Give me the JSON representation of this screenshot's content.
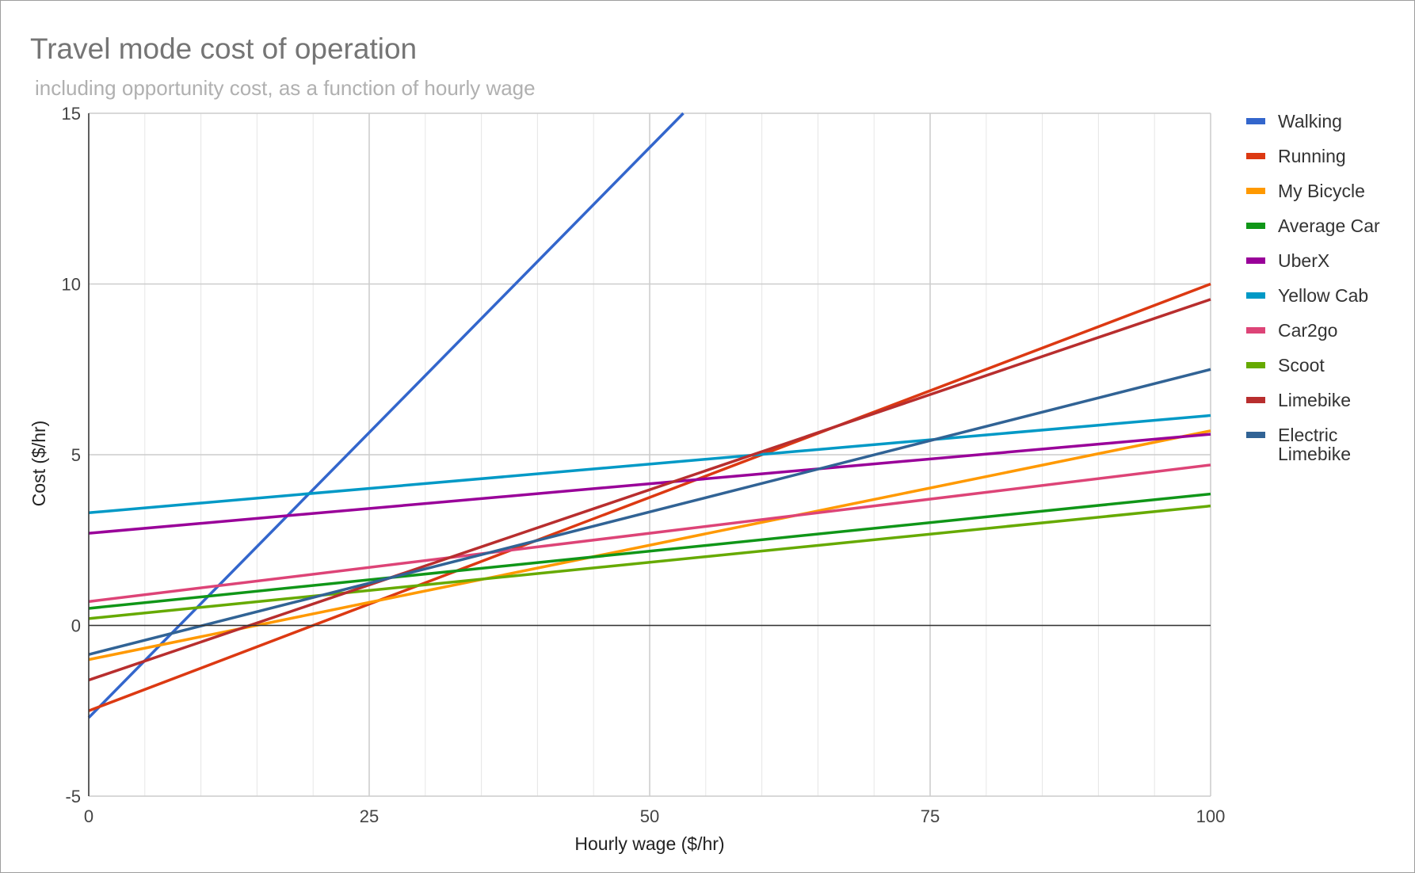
{
  "chart_data": {
    "type": "line",
    "title": "Travel mode cost of operation",
    "subtitle": "including opportunity cost, as a function of hourly wage",
    "xlabel": "Hourly wage ($/hr)",
    "ylabel": "Cost ($/hr)",
    "xlim": [
      0,
      100
    ],
    "ylim": [
      -5,
      15
    ],
    "x_ticks": [
      0,
      25,
      50,
      75,
      100
    ],
    "y_ticks": [
      -5,
      0,
      5,
      10,
      15
    ],
    "grid": true,
    "legend_position": "right",
    "series": [
      {
        "name": "Walking",
        "color": "#3366cc",
        "points": [
          [
            0,
            -2.7
          ],
          [
            53,
            15
          ]
        ]
      },
      {
        "name": "Running",
        "color": "#dc3912",
        "points": [
          [
            0,
            -2.5
          ],
          [
            100,
            10.0
          ]
        ]
      },
      {
        "name": "My Bicycle",
        "color": "#ff9900",
        "points": [
          [
            0,
            -1.0
          ],
          [
            100,
            5.7
          ]
        ]
      },
      {
        "name": "Average Car",
        "color": "#109618",
        "points": [
          [
            0,
            0.5
          ],
          [
            100,
            3.85
          ]
        ]
      },
      {
        "name": "UberX",
        "color": "#990099",
        "points": [
          [
            0,
            2.7
          ],
          [
            100,
            5.6
          ]
        ]
      },
      {
        "name": "Yellow Cab",
        "color": "#0099c6",
        "points": [
          [
            0,
            3.3
          ],
          [
            100,
            6.15
          ]
        ]
      },
      {
        "name": "Car2go",
        "color": "#dd4477",
        "points": [
          [
            0,
            0.7
          ],
          [
            100,
            4.7
          ]
        ]
      },
      {
        "name": "Scoot",
        "color": "#66aa00",
        "points": [
          [
            0,
            0.2
          ],
          [
            100,
            3.5
          ]
        ]
      },
      {
        "name": "Limebike",
        "color": "#b82e2e",
        "points": [
          [
            0,
            -1.6
          ],
          [
            100,
            9.55
          ]
        ]
      },
      {
        "name": "Electric Limebike",
        "color": "#316395",
        "points": [
          [
            0,
            -0.85
          ],
          [
            100,
            7.5
          ]
        ]
      }
    ]
  }
}
